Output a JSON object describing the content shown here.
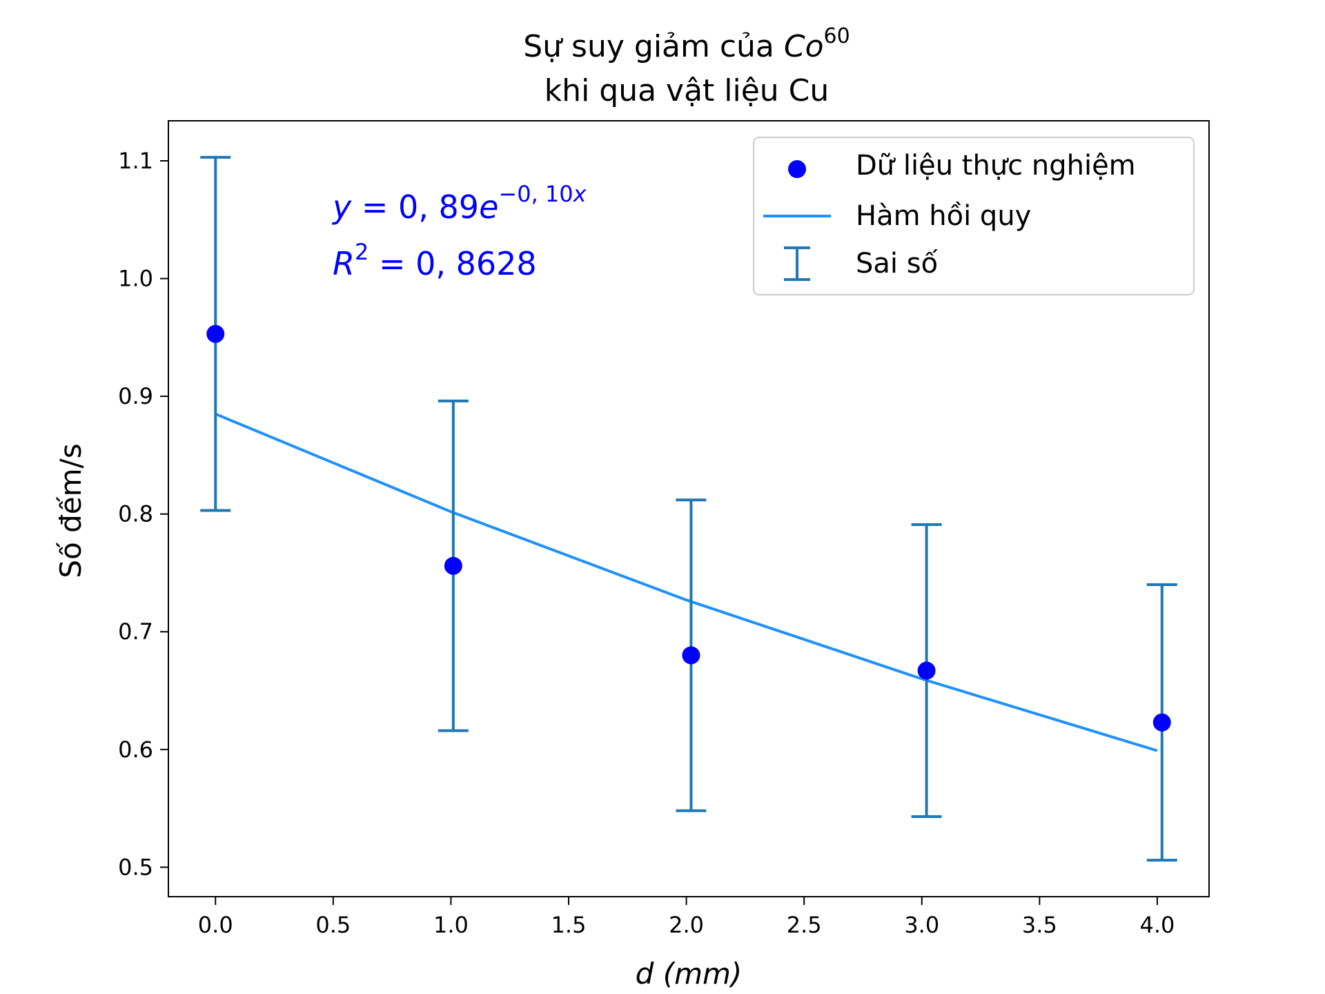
{
  "chart_data": {
    "type": "scatter",
    "title_line1_prefix": "Sự suy giảm của ",
    "title_line1_symbol": "Co",
    "title_line1_sup": "60",
    "title_line2": "khi qua vật liệu Cu",
    "xlabel_var": "d",
    "xlabel_unit": "(mm)",
    "ylabel": "Số đếm/s",
    "xlim": [
      -0.2,
      4.22
    ],
    "ylim": [
      0.475,
      1.134
    ],
    "xticks": [
      0.0,
      0.5,
      1.0,
      1.5,
      2.0,
      2.5,
      3.0,
      3.5,
      4.0
    ],
    "xtick_labels": [
      "0.0",
      "0.5",
      "1.0",
      "1.5",
      "2.0",
      "2.5",
      "3.0",
      "3.5",
      "4.0"
    ],
    "yticks": [
      0.5,
      0.6,
      0.7,
      0.8,
      0.9,
      1.0,
      1.1
    ],
    "ytick_labels": [
      "0.5",
      "0.6",
      "0.7",
      "0.8",
      "0.9",
      "1.0",
      "1.1"
    ],
    "grid": false,
    "legend_position": "top-right",
    "series": [
      {
        "name": "Dữ liệu thực nghiệm",
        "kind": "points",
        "color": "#0000ff",
        "x": [
          0.0,
          1.01,
          2.02,
          3.02,
          4.02
        ],
        "y": [
          0.953,
          0.756,
          0.68,
          0.667,
          0.623
        ]
      },
      {
        "name": "Hàm hồi quy",
        "kind": "line",
        "color": "#1e90ff",
        "x": [
          0.0,
          1.0,
          2.0,
          3.0,
          4.0
        ],
        "y": [
          0.885,
          0.802,
          0.727,
          0.66,
          0.599
        ]
      },
      {
        "name": "Sai số",
        "kind": "errorbar",
        "color": "#1f77b4",
        "x": [
          0.0,
          1.01,
          2.02,
          3.02,
          4.02
        ],
        "y": [
          0.953,
          0.756,
          0.68,
          0.667,
          0.623
        ],
        "yerr": [
          0.15,
          0.14,
          0.132,
          0.124,
          0.117
        ]
      }
    ],
    "annotation_equation": {
      "y": "y",
      "eq": " = 0, 89",
      "e": "e",
      "exp": "−0, 10",
      "x": "x"
    },
    "annotation_r2": {
      "R": "R",
      "sup": "2",
      "eq": " = 0, 8628"
    },
    "annotation_color": "#0000ff"
  }
}
